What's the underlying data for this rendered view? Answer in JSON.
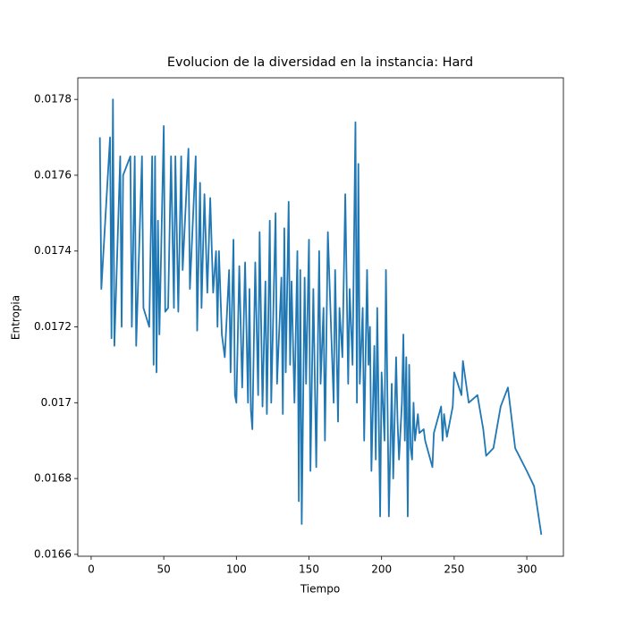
{
  "chart_data": {
    "type": "line",
    "title": "Evolucion de la diversidad en la instancia: Hard",
    "xlabel": "Tiempo",
    "ylabel": "Entropia",
    "color": "#1f77b4",
    "x": [
      6,
      7,
      13,
      14,
      15,
      16,
      20,
      21,
      22,
      27,
      28,
      30,
      31,
      35,
      36,
      40,
      42,
      43,
      44,
      45,
      46,
      47,
      50,
      51,
      53,
      55,
      57,
      58,
      60,
      62,
      63,
      67,
      68,
      72,
      73,
      75,
      76,
      78,
      80,
      82,
      84,
      86,
      87,
      88,
      90,
      92,
      95,
      96,
      98,
      99,
      100,
      102,
      104,
      106,
      108,
      109,
      110,
      111,
      113,
      115,
      116,
      118,
      120,
      121,
      123,
      124,
      127,
      128,
      131,
      132,
      133,
      134,
      136,
      137,
      138,
      140,
      142,
      143,
      144,
      145,
      147,
      148,
      150,
      151,
      153,
      155,
      157,
      158,
      160,
      161,
      163,
      165,
      167,
      168,
      170,
      171,
      173,
      175,
      177,
      178,
      180,
      182,
      183,
      184,
      185,
      187,
      188,
      190,
      191,
      192,
      193,
      195,
      196,
      197,
      199,
      200,
      202,
      203,
      205,
      207,
      208,
      210,
      211,
      212,
      214,
      215,
      216,
      217,
      218,
      219,
      220,
      221,
      222,
      223,
      225,
      226,
      229,
      230,
      235,
      236,
      241,
      242,
      243,
      245,
      249,
      250,
      255,
      256,
      260,
      266,
      270,
      272,
      277,
      282,
      287,
      292,
      300,
      305,
      310
    ],
    "values": [
      0.0177,
      0.0173,
      0.0177,
      0.01717,
      0.0178,
      0.01715,
      0.01765,
      0.0172,
      0.0176,
      0.01765,
      0.0172,
      0.01765,
      0.01715,
      0.01765,
      0.01725,
      0.0172,
      0.01765,
      0.0171,
      0.01765,
      0.01708,
      0.01748,
      0.01718,
      0.01773,
      0.01724,
      0.01725,
      0.01765,
      0.01725,
      0.01765,
      0.01724,
      0.01765,
      0.01735,
      0.01767,
      0.0173,
      0.01765,
      0.01719,
      0.01758,
      0.01725,
      0.01755,
      0.01729,
      0.01754,
      0.01729,
      0.0174,
      0.0172,
      0.0174,
      0.01718,
      0.01712,
      0.01735,
      0.01708,
      0.01743,
      0.01702,
      0.017,
      0.01736,
      0.01704,
      0.01737,
      0.017,
      0.0173,
      0.01698,
      0.01693,
      0.01737,
      0.01702,
      0.01745,
      0.01699,
      0.01732,
      0.01697,
      0.01748,
      0.017,
      0.0175,
      0.01705,
      0.01733,
      0.01697,
      0.01746,
      0.01708,
      0.01753,
      0.0171,
      0.01732,
      0.017,
      0.0174,
      0.01674,
      0.01735,
      0.01668,
      0.01733,
      0.01705,
      0.01743,
      0.01682,
      0.0173,
      0.01683,
      0.0174,
      0.01705,
      0.01725,
      0.0169,
      0.01745,
      0.01722,
      0.017,
      0.01735,
      0.01695,
      0.01725,
      0.01712,
      0.01755,
      0.01705,
      0.0173,
      0.0171,
      0.01774,
      0.017,
      0.01763,
      0.01705,
      0.01725,
      0.0169,
      0.01735,
      0.0171,
      0.0172,
      0.01682,
      0.01715,
      0.01685,
      0.01725,
      0.0167,
      0.01708,
      0.0169,
      0.01735,
      0.0167,
      0.01705,
      0.0168,
      0.01712,
      0.01695,
      0.01685,
      0.017,
      0.01718,
      0.0169,
      0.01712,
      0.0167,
      0.0171,
      0.01688,
      0.01685,
      0.017,
      0.0169,
      0.01697,
      0.01692,
      0.01693,
      0.0169,
      0.01683,
      0.01692,
      0.01699,
      0.0169,
      0.01697,
      0.01691,
      0.01699,
      0.01708,
      0.01702,
      0.01711,
      0.017,
      0.01702,
      0.01693,
      0.01686,
      0.01688,
      0.01699,
      0.01704,
      0.01688,
      0.01682,
      0.01678,
      0.016652
    ],
    "xlim": [
      -9.2,
      325.2
    ],
    "ylim": [
      0.016595,
      0.017857
    ],
    "xticks": [
      0,
      50,
      100,
      150,
      200,
      250,
      300
    ],
    "yticks": [
      0.0166,
      0.0168,
      0.017,
      0.0172,
      0.0174,
      0.0176,
      0.0178
    ]
  }
}
